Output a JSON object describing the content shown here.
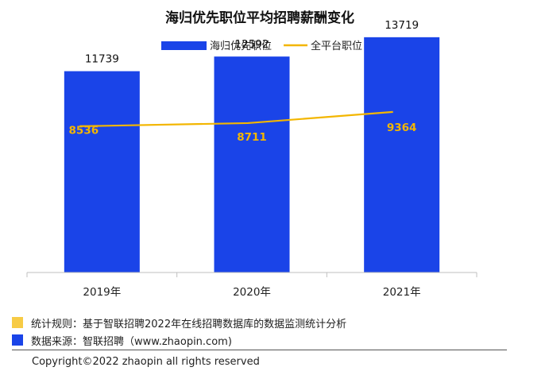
{
  "chart_data": {
    "type": "bar",
    "title": "海归优先职位平均招聘薪酬变化",
    "categories": [
      "2019年",
      "2020年",
      "2021年"
    ],
    "series": [
      {
        "name": "海归优先职位",
        "type": "bar",
        "color": "#1a44e8",
        "values": [
          11739,
          12592,
          13719
        ]
      },
      {
        "name": "全平台职位",
        "type": "line",
        "color": "#f3b600",
        "values": [
          8536,
          8711,
          9364
        ]
      }
    ],
    "ylim": [
      0,
      14500
    ],
    "grid": false,
    "legend": "top"
  },
  "notes": [
    {
      "color": "#f7cb45",
      "text": "统计规则：基于智联招聘2022年在线招聘数据库的数据监测统计分析"
    },
    {
      "color": "#1a44e8",
      "text": "数据来源：智联招聘（www.zhaopin.com)"
    }
  ],
  "copyright": "Copyright©2022 zhaopin all rights reserved"
}
